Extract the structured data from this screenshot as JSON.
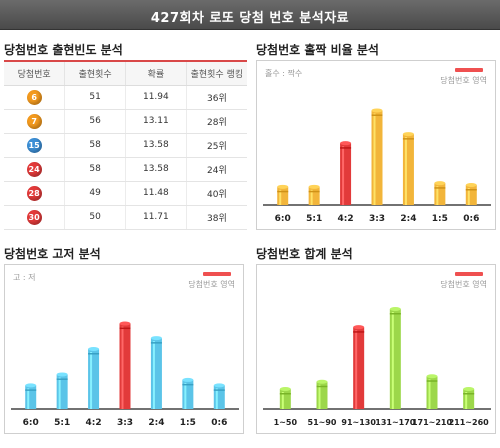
{
  "header": {
    "title": "427회차 로또 당첨 번호 분석자료"
  },
  "frequency": {
    "title": "당첨번호 출현빈도 분석",
    "columns": [
      "당첨번호",
      "출현횟수",
      "확률",
      "출현횟수 랭킹"
    ],
    "rows": [
      {
        "number": "6",
        "color": "#f39a1e",
        "count": "51",
        "prob": "11.94",
        "rank": "36위"
      },
      {
        "number": "7",
        "color": "#f39a1e",
        "count": "56",
        "prob": "13.11",
        "rank": "28위"
      },
      {
        "number": "15",
        "color": "#3c8fd6",
        "count": "58",
        "prob": "13.58",
        "rank": "25위"
      },
      {
        "number": "24",
        "color": "#e23a3a",
        "count": "58",
        "prob": "13.58",
        "rank": "24위"
      },
      {
        "number": "28",
        "color": "#e23a3a",
        "count": "49",
        "prob": "11.48",
        "rank": "40위"
      },
      {
        "number": "30",
        "color": "#e23a3a",
        "count": "50",
        "prob": "11.71",
        "rank": "38위"
      }
    ]
  },
  "odd_even": {
    "title": "당첨번호 홀짝 비율 분석",
    "note": "홀수 : 짝수",
    "legend": "당첨번호 영역"
  },
  "high_low": {
    "title": "당첨번호 고저 분석",
    "note": "고 : 저",
    "legend": "당첨번호 영역"
  },
  "sum": {
    "title": "당첨번호 합계 분석",
    "legend": "당첨번호 영역"
  },
  "chart_data": [
    {
      "type": "bar",
      "title": "당첨번호 홀짝 비율 분석",
      "categories": [
        "6:0",
        "5:1",
        "4:2",
        "3:3",
        "2:4",
        "1:5",
        "0:6"
      ],
      "values": [
        1,
        1,
        3.4,
        5.2,
        3.9,
        1.2,
        1.1
      ],
      "highlight": "4:2",
      "base_color": "#f2b53a",
      "highlight_color": "#e23a3a"
    },
    {
      "type": "bar",
      "title": "당첨번호 고저 분석",
      "categories": [
        "6:0",
        "5:1",
        "4:2",
        "3:3",
        "2:4",
        "1:5",
        "0:6"
      ],
      "values": [
        1.3,
        1.9,
        3.3,
        4.7,
        3.9,
        1.6,
        1.3
      ],
      "highlight": "3:3",
      "base_color": "#5bc4e8",
      "highlight_color": "#e23a3a"
    },
    {
      "type": "bar",
      "title": "당첨번호 합계 분석",
      "categories": [
        "1~50",
        "51~90",
        "91~130",
        "131~170",
        "171~210",
        "211~260"
      ],
      "values": [
        1.1,
        1.5,
        4.5,
        5.5,
        1.8,
        1.1
      ],
      "highlight": "91~130",
      "base_color": "#9cd74a",
      "highlight_color": "#e23a3a"
    }
  ]
}
